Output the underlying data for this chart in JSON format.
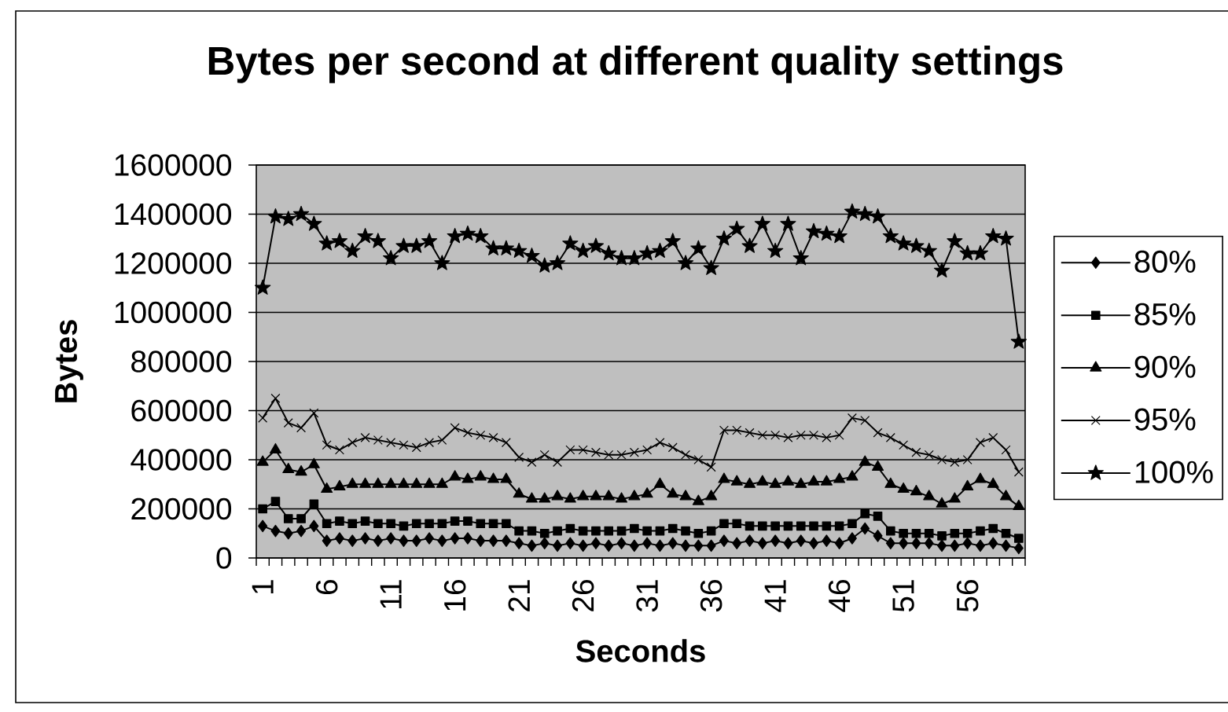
{
  "chart_data": {
    "type": "line",
    "title": "Bytes per second at different quality settings",
    "xlabel": "Seconds",
    "ylabel": "Bytes",
    "categories": [
      "1",
      null,
      null,
      null,
      null,
      "6",
      null,
      null,
      null,
      null,
      "11",
      null,
      null,
      null,
      null,
      "16",
      null,
      null,
      null,
      null,
      "21",
      null,
      null,
      null,
      null,
      "26",
      null,
      null,
      null,
      null,
      "31",
      null,
      null,
      null,
      null,
      "36",
      null,
      null,
      null,
      null,
      "41",
      null,
      null,
      null,
      null,
      "46",
      null,
      null,
      null,
      null,
      "51",
      null,
      null,
      null,
      null,
      "56",
      null,
      null,
      null,
      null
    ],
    "series": [
      {
        "name": "80%",
        "color": "#000000",
        "marker": "diamond",
        "values": [
          130000,
          110000,
          100000,
          110000,
          130000,
          70000,
          80000,
          70000,
          80000,
          70000,
          80000,
          70000,
          70000,
          80000,
          70000,
          80000,
          80000,
          70000,
          70000,
          70000,
          60000,
          50000,
          60000,
          50000,
          60000,
          50000,
          60000,
          50000,
          60000,
          50000,
          60000,
          50000,
          60000,
          50000,
          50000,
          50000,
          70000,
          60000,
          70000,
          60000,
          70000,
          60000,
          70000,
          60000,
          70000,
          60000,
          80000,
          120000,
          90000,
          60000,
          60000,
          60000,
          60000,
          50000,
          50000,
          60000,
          50000,
          60000,
          50000,
          40000
        ]
      },
      {
        "name": "85%",
        "color": "#000000",
        "marker": "square",
        "values": [
          200000,
          230000,
          160000,
          160000,
          220000,
          140000,
          150000,
          140000,
          150000,
          140000,
          140000,
          130000,
          140000,
          140000,
          140000,
          150000,
          150000,
          140000,
          140000,
          140000,
          110000,
          110000,
          100000,
          110000,
          120000,
          110000,
          110000,
          110000,
          110000,
          120000,
          110000,
          110000,
          120000,
          110000,
          100000,
          110000,
          140000,
          140000,
          130000,
          130000,
          130000,
          130000,
          130000,
          130000,
          130000,
          130000,
          140000,
          180000,
          170000,
          110000,
          100000,
          100000,
          100000,
          90000,
          100000,
          100000,
          110000,
          120000,
          100000,
          80000
        ]
      },
      {
        "name": "90%",
        "color": "#000000",
        "marker": "triangle",
        "values": [
          390000,
          440000,
          360000,
          350000,
          380000,
          280000,
          290000,
          300000,
          300000,
          300000,
          300000,
          300000,
          300000,
          300000,
          300000,
          330000,
          320000,
          330000,
          320000,
          320000,
          260000,
          240000,
          240000,
          250000,
          240000,
          250000,
          250000,
          250000,
          240000,
          250000,
          260000,
          300000,
          260000,
          250000,
          230000,
          250000,
          320000,
          310000,
          300000,
          310000,
          300000,
          310000,
          300000,
          310000,
          310000,
          320000,
          330000,
          390000,
          370000,
          300000,
          280000,
          270000,
          250000,
          220000,
          240000,
          290000,
          320000,
          300000,
          250000,
          210000
        ]
      },
      {
        "name": "95%",
        "color": "#000000",
        "marker": "cross",
        "values": [
          570000,
          650000,
          550000,
          530000,
          590000,
          460000,
          440000,
          470000,
          490000,
          480000,
          470000,
          460000,
          450000,
          470000,
          480000,
          530000,
          510000,
          500000,
          490000,
          470000,
          410000,
          390000,
          420000,
          390000,
          440000,
          440000,
          430000,
          420000,
          420000,
          430000,
          440000,
          470000,
          450000,
          420000,
          400000,
          370000,
          520000,
          520000,
          510000,
          500000,
          500000,
          490000,
          500000,
          500000,
          490000,
          500000,
          570000,
          560000,
          510000,
          490000,
          460000,
          430000,
          420000,
          400000,
          390000,
          400000,
          470000,
          490000,
          440000,
          350000
        ]
      },
      {
        "name": "100%",
        "color": "#000000",
        "marker": "star",
        "values": [
          1100000,
          1390000,
          1380000,
          1400000,
          1360000,
          1280000,
          1290000,
          1250000,
          1310000,
          1290000,
          1220000,
          1270000,
          1270000,
          1290000,
          1200000,
          1310000,
          1320000,
          1310000,
          1260000,
          1260000,
          1250000,
          1230000,
          1190000,
          1200000,
          1280000,
          1250000,
          1270000,
          1240000,
          1220000,
          1220000,
          1240000,
          1250000,
          1290000,
          1200000,
          1260000,
          1180000,
          1300000,
          1340000,
          1270000,
          1360000,
          1250000,
          1360000,
          1220000,
          1330000,
          1320000,
          1310000,
          1410000,
          1400000,
          1390000,
          1310000,
          1280000,
          1270000,
          1250000,
          1170000,
          1290000,
          1240000,
          1240000,
          1310000,
          1300000,
          880000
        ]
      }
    ],
    "ylim": [
      0,
      1600000
    ],
    "yticks": [
      0,
      200000,
      400000,
      600000,
      800000,
      1000000,
      1200000,
      1400000,
      1600000
    ],
    "grid": "y",
    "legend": "right"
  }
}
